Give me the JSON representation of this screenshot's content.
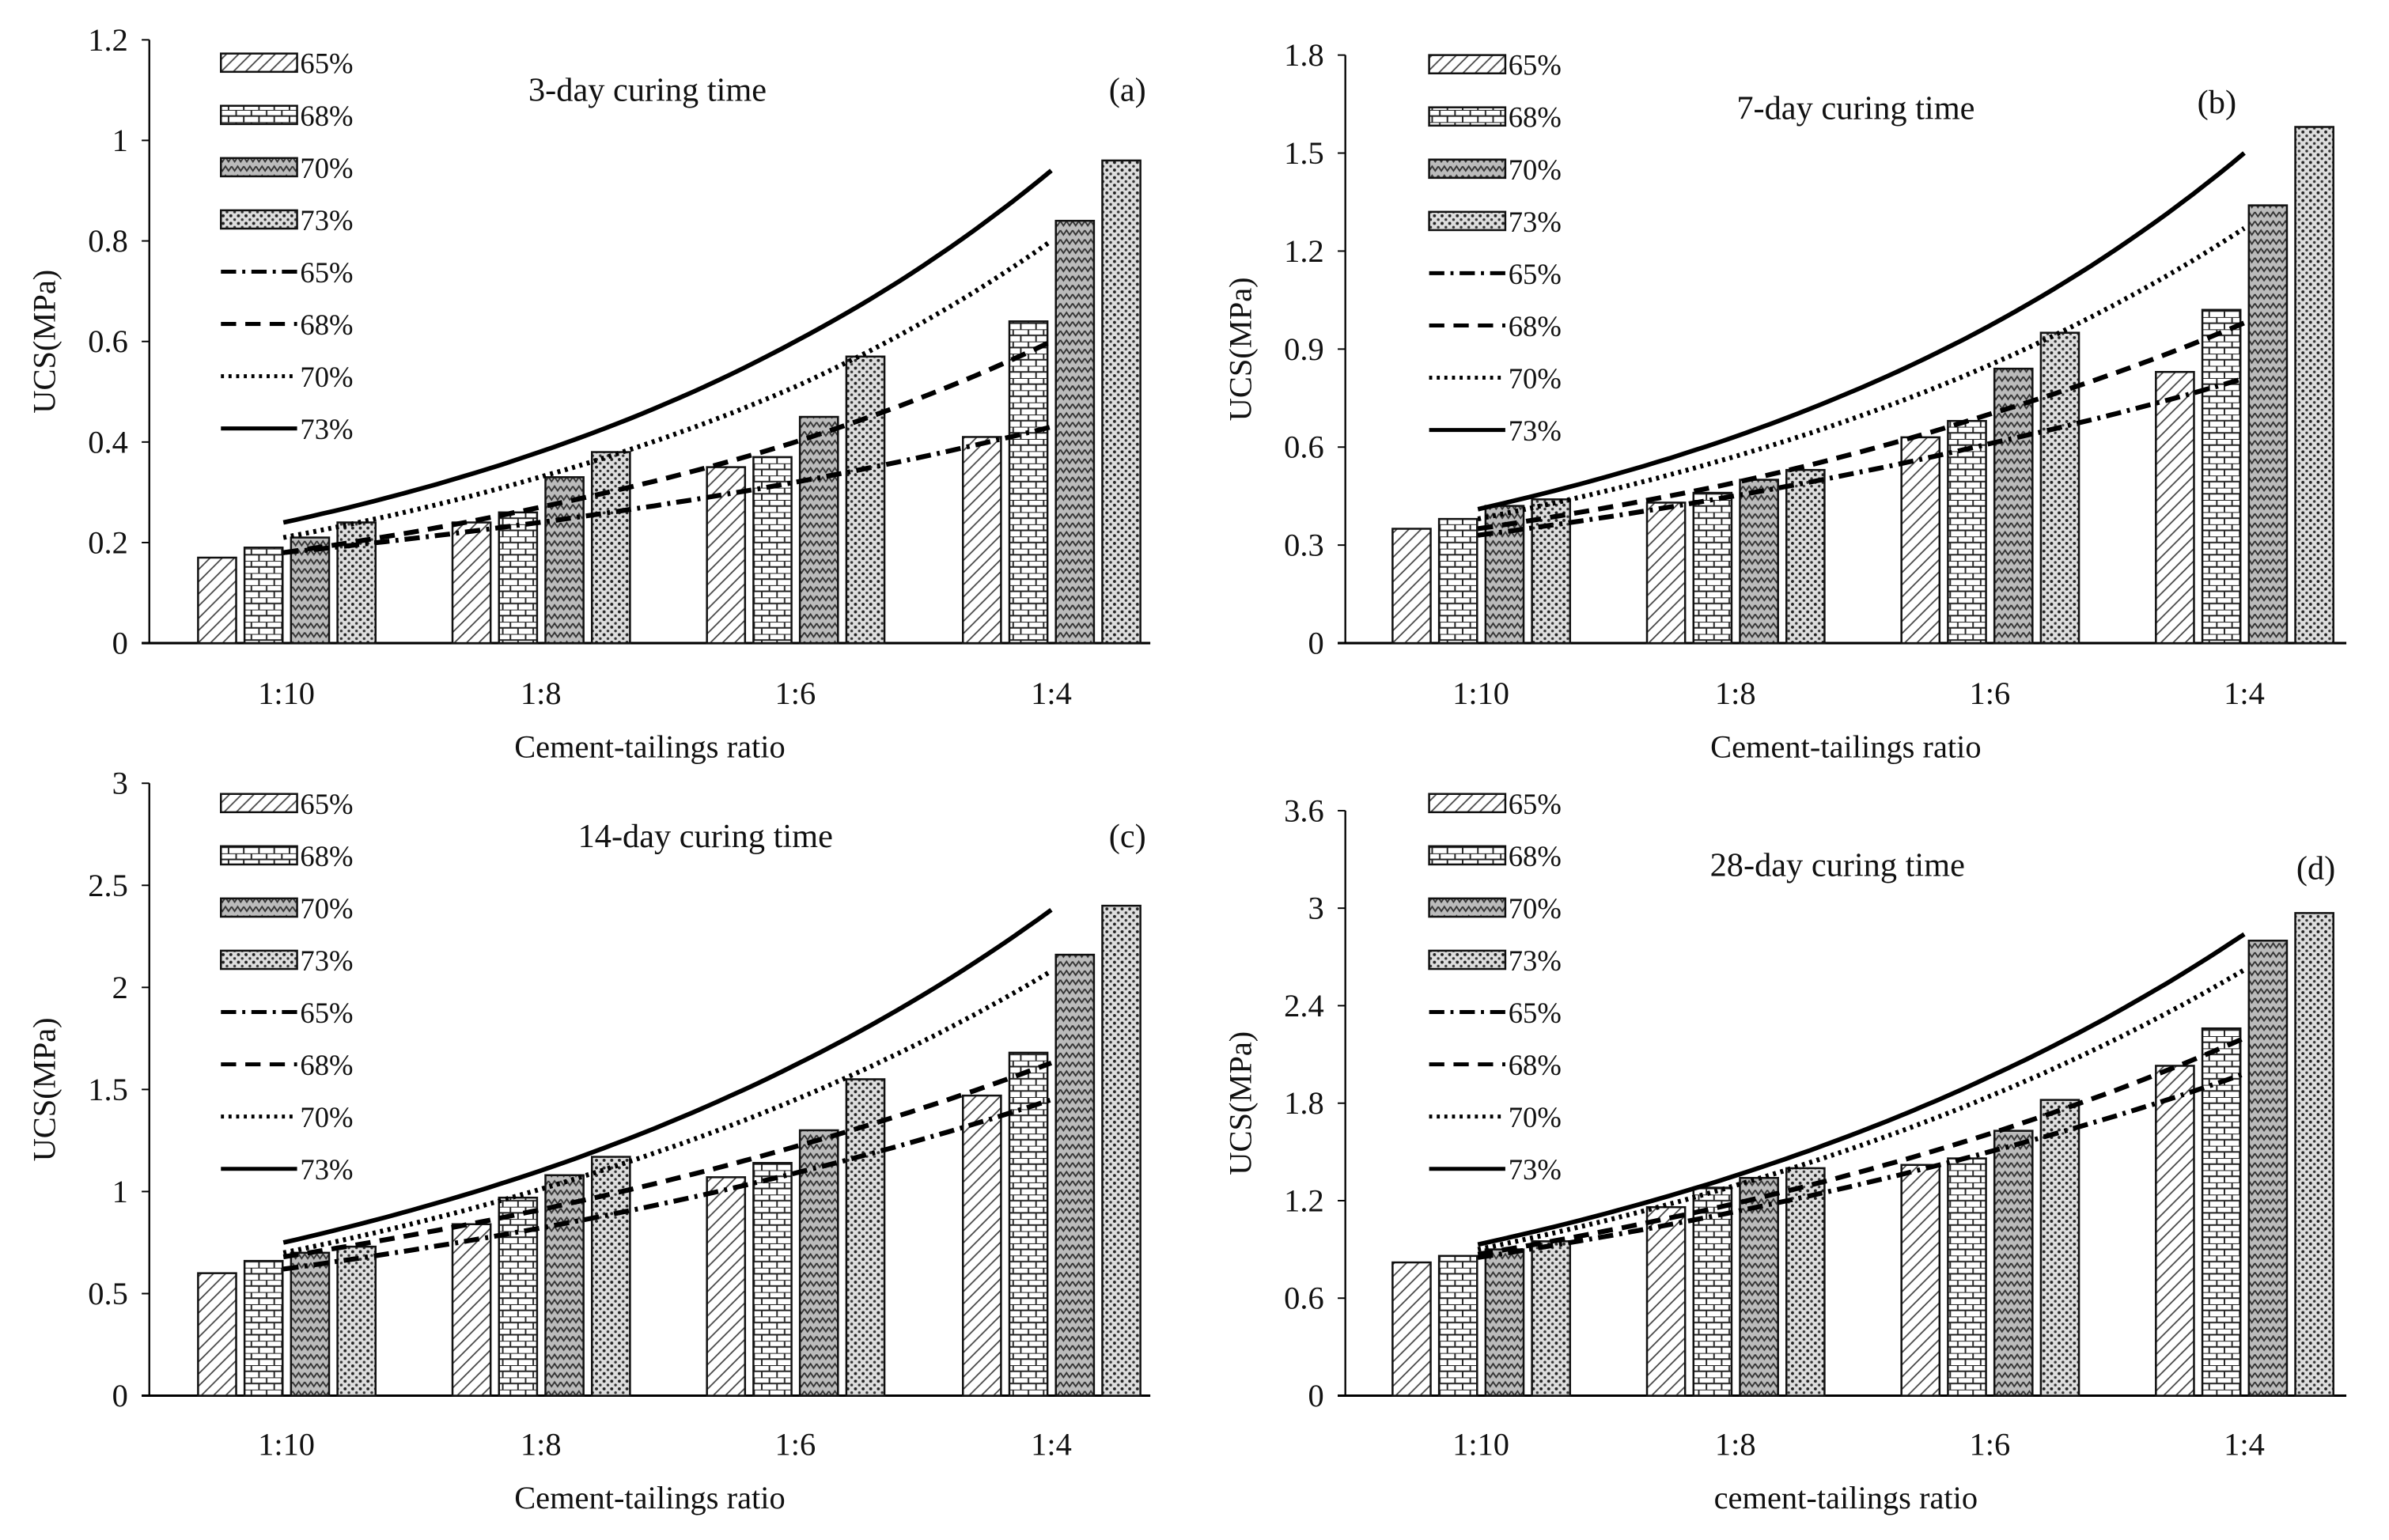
{
  "chart_data": [
    {
      "type": "bar",
      "panel_label": "(a)",
      "title": "3-day curing time",
      "xlabel": "Cement-tailings ratio",
      "ylabel": "UCS(MPa)",
      "ylim": [
        0,
        1.2
      ],
      "yticks": [
        "0",
        "0.2",
        "0.4",
        "0.6",
        "0.8",
        "1",
        "1.2"
      ],
      "categories": [
        "1:10",
        "1:8",
        "1:6",
        "1:4"
      ],
      "series": [
        {
          "name": "65%",
          "values": [
            0.17,
            0.24,
            0.35,
            0.41
          ]
        },
        {
          "name": "68%",
          "values": [
            0.19,
            0.26,
            0.37,
            0.64
          ]
        },
        {
          "name": "70%",
          "values": [
            0.21,
            0.33,
            0.45,
            0.84
          ]
        },
        {
          "name": "73%",
          "values": [
            0.24,
            0.38,
            0.57,
            0.96
          ]
        }
      ],
      "trend_lines": [
        {
          "name": "65%",
          "values": [
            0.18,
            0.24,
            0.32,
            0.43
          ]
        },
        {
          "name": "68%",
          "values": [
            0.18,
            0.27,
            0.4,
            0.6
          ]
        },
        {
          "name": "70%",
          "values": [
            0.21,
            0.33,
            0.51,
            0.8
          ]
        },
        {
          "name": "73%",
          "values": [
            0.24,
            0.38,
            0.6,
            0.94
          ]
        }
      ],
      "legend": "top-left"
    },
    {
      "type": "bar",
      "panel_label": "(b)",
      "title": "7-day curing time",
      "xlabel": "Cement-tailings ratio",
      "ylabel": "UCS(MPa)",
      "ylim": [
        0,
        1.8
      ],
      "yticks": [
        "0",
        "0.3",
        "0.6",
        "0.9",
        "1.2",
        "1.5",
        "1.8"
      ],
      "categories": [
        "1:10",
        "1:8",
        "1:6",
        "1:4"
      ],
      "series": [
        {
          "name": "65%",
          "values": [
            0.35,
            0.43,
            0.63,
            0.83
          ]
        },
        {
          "name": "68%",
          "values": [
            0.38,
            0.46,
            0.68,
            1.02
          ]
        },
        {
          "name": "70%",
          "values": [
            0.42,
            0.5,
            0.84,
            1.34
          ]
        },
        {
          "name": "73%",
          "values": [
            0.44,
            0.53,
            0.95,
            1.58
          ]
        }
      ],
      "trend_lines": [
        {
          "name": "65%",
          "values": [
            0.33,
            0.45,
            0.61,
            0.81
          ]
        },
        {
          "name": "68%",
          "values": [
            0.35,
            0.49,
            0.7,
            0.98
          ]
        },
        {
          "name": "70%",
          "values": [
            0.38,
            0.57,
            0.85,
            1.27
          ]
        },
        {
          "name": "73%",
          "values": [
            0.41,
            0.63,
            0.97,
            1.5
          ]
        }
      ],
      "legend": "top-left"
    },
    {
      "type": "bar",
      "panel_label": "(c)",
      "title": "14-day curing time",
      "xlabel": "Cement-tailings ratio",
      "ylabel": "UCS(MPa)",
      "ylim": [
        0,
        3
      ],
      "yticks": [
        "0",
        "0.5",
        "1",
        "1.5",
        "2",
        "2.5",
        "3"
      ],
      "categories": [
        "1:10",
        "1:8",
        "1:6",
        "1:4"
      ],
      "series": [
        {
          "name": "65%",
          "values": [
            0.6,
            0.84,
            1.07,
            1.47
          ]
        },
        {
          "name": "68%",
          "values": [
            0.66,
            0.97,
            1.14,
            1.68
          ]
        },
        {
          "name": "70%",
          "values": [
            0.7,
            1.08,
            1.3,
            2.16
          ]
        },
        {
          "name": "73%",
          "values": [
            0.73,
            1.17,
            1.55,
            2.4
          ]
        }
      ],
      "trend_lines": [
        {
          "name": "65%",
          "values": [
            0.62,
            0.82,
            1.09,
            1.45
          ]
        },
        {
          "name": "68%",
          "values": [
            0.68,
            0.91,
            1.22,
            1.63
          ]
        },
        {
          "name": "70%",
          "values": [
            0.7,
            1.01,
            1.45,
            2.08
          ]
        },
        {
          "name": "73%",
          "values": [
            0.75,
            1.1,
            1.62,
            2.38
          ]
        }
      ],
      "legend": "top-left"
    },
    {
      "type": "bar",
      "panel_label": "(d)",
      "title": "28-day curing time",
      "xlabel": "cement-tailings ratio",
      "ylabel": "UCS(MPa)",
      "ylim": [
        0,
        3.6
      ],
      "yticks": [
        "0",
        "0.6",
        "1.2",
        "1.8",
        "2.4",
        "3",
        "3.6"
      ],
      "categories": [
        "1:10",
        "1:8",
        "1:6",
        "1:4"
      ],
      "series": [
        {
          "name": "65%",
          "values": [
            0.82,
            1.16,
            1.42,
            2.03
          ]
        },
        {
          "name": "68%",
          "values": [
            0.86,
            1.28,
            1.46,
            2.26
          ]
        },
        {
          "name": "70%",
          "values": [
            0.9,
            1.34,
            1.63,
            2.8
          ]
        },
        {
          "name": "73%",
          "values": [
            0.95,
            1.4,
            1.82,
            2.97
          ]
        }
      ],
      "trend_lines": [
        {
          "name": "65%",
          "values": [
            0.85,
            1.13,
            1.5,
            1.98
          ]
        },
        {
          "name": "68%",
          "values": [
            0.87,
            1.18,
            1.61,
            2.2
          ]
        },
        {
          "name": "70%",
          "values": [
            0.9,
            1.29,
            1.84,
            2.62
          ]
        },
        {
          "name": "73%",
          "values": [
            0.93,
            1.35,
            1.96,
            2.84
          ]
        }
      ],
      "legend": "top-left"
    }
  ]
}
